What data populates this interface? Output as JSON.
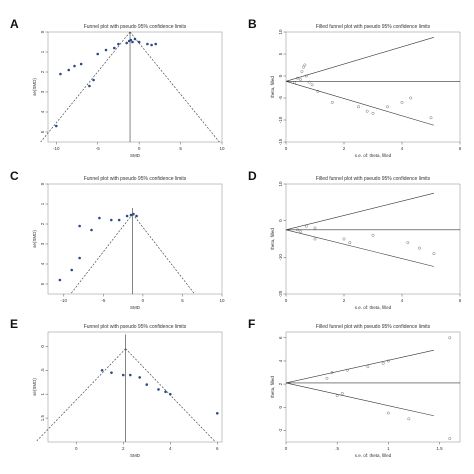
{
  "chart_data": [
    {
      "panel": "A",
      "variant": "funnel",
      "title": "Funnel plot with pseudo 95% confidence limits",
      "xlabel": "SMD",
      "ylabel": "se(SMD)",
      "xlim": [
        -11,
        10
      ],
      "ylim": [
        0,
        5.5
      ],
      "xticks": [
        "-10",
        "-5",
        "0",
        "5",
        "10"
      ],
      "xtick_values": [
        -10,
        -5,
        0,
        5,
        10
      ],
      "yticks": [
        "0",
        "1",
        "2",
        "3",
        "4",
        "5"
      ],
      "ytick_values": [
        0,
        1,
        2,
        3,
        4,
        5
      ],
      "pooled": -1.1,
      "apex_y": 0,
      "points": [
        {
          "x": -10,
          "y": 4.7
        },
        {
          "x": -9.5,
          "y": 2.1
        },
        {
          "x": -8.5,
          "y": 1.9
        },
        {
          "x": -7.8,
          "y": 1.7
        },
        {
          "x": -7,
          "y": 1.6
        },
        {
          "x": -6,
          "y": 2.7
        },
        {
          "x": -5.5,
          "y": 2.4
        },
        {
          "x": -5,
          "y": 1.1
        },
        {
          "x": -4,
          "y": 0.9
        },
        {
          "x": -3,
          "y": 0.8
        },
        {
          "x": -2.5,
          "y": 0.6
        },
        {
          "x": -1.5,
          "y": 0.55
        },
        {
          "x": -1.2,
          "y": 0.45
        },
        {
          "x": -1,
          "y": 0.4
        },
        {
          "x": -0.8,
          "y": 0.5
        },
        {
          "x": -0.5,
          "y": 0.35
        },
        {
          "x": 0,
          "y": 0.5
        },
        {
          "x": 1,
          "y": 0.6
        },
        {
          "x": 1.5,
          "y": 0.65
        },
        {
          "x": 2,
          "y": 0.6
        }
      ]
    },
    {
      "panel": "B",
      "variant": "filled",
      "title": "Filled funnel plot with pseudo 95% confidence limits",
      "xlabel": "s.e. of: theta, filled",
      "ylabel": "theta, filled",
      "xlim": [
        0,
        6
      ],
      "ylim": [
        -15,
        10
      ],
      "xticks": [
        "0",
        "2",
        "4",
        "6"
      ],
      "xtick_values": [
        0,
        2,
        4,
        6
      ],
      "yticks": [
        "10",
        "5",
        "0",
        "-5",
        "-10",
        "-15"
      ],
      "ytick_values": [
        10,
        5,
        0,
        -5,
        -10,
        -15
      ],
      "pooled": -1.2,
      "points": [
        {
          "x": 0.3,
          "y": -1.5
        },
        {
          "x": 0.4,
          "y": -0.5
        },
        {
          "x": 0.5,
          "y": -0.8
        },
        {
          "x": 0.55,
          "y": 1
        },
        {
          "x": 0.6,
          "y": 2
        },
        {
          "x": 0.65,
          "y": 2.5
        },
        {
          "x": 0.7,
          "y": 0
        },
        {
          "x": 0.8,
          "y": -1.4
        },
        {
          "x": 0.9,
          "y": -2
        },
        {
          "x": 1.1,
          "y": -3.5
        },
        {
          "x": 1.6,
          "y": -6
        },
        {
          "x": 2.5,
          "y": -7
        },
        {
          "x": 2.8,
          "y": -8
        },
        {
          "x": 3,
          "y": -8.5
        },
        {
          "x": 3.5,
          "y": -7
        },
        {
          "x": 4,
          "y": -6
        },
        {
          "x": 4.3,
          "y": -5
        },
        {
          "x": 5,
          "y": -9.5
        }
      ]
    },
    {
      "panel": "C",
      "variant": "funnel",
      "title": "Funnel plot with pseudo 95% confidence limits",
      "xlabel": "SMD",
      "ylabel": "se(SMD)",
      "xlim": [
        -12,
        10
      ],
      "ylim": [
        0,
        5.5
      ],
      "xticks": [
        "-10",
        "-5",
        "0",
        "5",
        "10"
      ],
      "xtick_values": [
        -10,
        -5,
        0,
        5,
        10
      ],
      "yticks": [
        "0",
        "1",
        "2",
        "3",
        "4",
        "5"
      ],
      "ytick_values": [
        0,
        1,
        2,
        3,
        4,
        5
      ],
      "pooled": -1.3,
      "apex_y": 1.5,
      "points": [
        {
          "x": -10.5,
          "y": 4.8
        },
        {
          "x": -9,
          "y": 4.3
        },
        {
          "x": -8,
          "y": 3.7
        },
        {
          "x": -8,
          "y": 2.1
        },
        {
          "x": -6.5,
          "y": 2.3
        },
        {
          "x": -5.5,
          "y": 1.7
        },
        {
          "x": -4,
          "y": 1.8
        },
        {
          "x": -3,
          "y": 1.8
        },
        {
          "x": -2,
          "y": 1.6
        },
        {
          "x": -1.5,
          "y": 1.55
        },
        {
          "x": -1.2,
          "y": 1.5
        },
        {
          "x": -0.8,
          "y": 1.6
        }
      ]
    },
    {
      "panel": "D",
      "variant": "filled",
      "title": "Filled funnel plot with pseudo 95% confidence limits",
      "xlabel": "s.e. of: theta, filled",
      "ylabel": "theta, filled",
      "xlim": [
        0,
        6
      ],
      "ylim": [
        -20,
        10
      ],
      "xticks": [
        "0",
        "2",
        "4",
        "6"
      ],
      "xtick_values": [
        0,
        2,
        4,
        6
      ],
      "yticks": [
        "10",
        "0",
        "-10",
        "-20"
      ],
      "ytick_values": [
        10,
        0,
        -10,
        -20
      ],
      "pooled": -2.5,
      "points": [
        {
          "x": 0.4,
          "y": -2.5
        },
        {
          "x": 0.5,
          "y": -3
        },
        {
          "x": 0.7,
          "y": -1.5
        },
        {
          "x": 1,
          "y": -2
        },
        {
          "x": 1,
          "y": -5
        },
        {
          "x": 2,
          "y": -5
        },
        {
          "x": 2.2,
          "y": -6
        },
        {
          "x": 3,
          "y": -4
        },
        {
          "x": 4.2,
          "y": -6
        },
        {
          "x": 4.6,
          "y": -7.5
        },
        {
          "x": 5.1,
          "y": -9
        }
      ]
    },
    {
      "panel": "E",
      "variant": "funnel",
      "title": "Funnel plot with pseudo 95% confidence limits",
      "xlabel": "SMD",
      "ylabel": "se(SMD)",
      "xlim": [
        -1.2,
        6.2
      ],
      "ylim": [
        -0.3,
        2
      ],
      "xticks": [
        "0",
        "2",
        "4",
        "6"
      ],
      "xtick_values": [
        0,
        2,
        4,
        6
      ],
      "yticks": [
        "0",
        ".5",
        "1",
        "1.5"
      ],
      "ytick_values": [
        0,
        0.5,
        1,
        1.5
      ],
      "pooled": 2.1,
      "apex_y": 0.05,
      "points": [
        {
          "x": 1.1,
          "y": 0.5
        },
        {
          "x": 1.5,
          "y": 0.55
        },
        {
          "x": 2,
          "y": 0.6
        },
        {
          "x": 2.3,
          "y": 0.6
        },
        {
          "x": 2.7,
          "y": 0.65
        },
        {
          "x": 3,
          "y": 0.8
        },
        {
          "x": 3.5,
          "y": 0.9
        },
        {
          "x": 3.8,
          "y": 0.95
        },
        {
          "x": 4,
          "y": 1
        },
        {
          "x": 6,
          "y": 1.4
        }
      ]
    },
    {
      "panel": "F",
      "variant": "filled",
      "title": "Filled funnel plot with pseudo 95% confidence limits",
      "xlabel": "s.e. of: theta, filled",
      "ylabel": "theta, filled",
      "xlim": [
        0,
        1.7
      ],
      "ylim": [
        -3,
        6.5
      ],
      "xticks": [
        "0",
        ".5",
        "1",
        "1.5"
      ],
      "xtick_values": [
        0,
        0.5,
        1,
        1.5
      ],
      "yticks": [
        "6",
        "4",
        "2",
        "0",
        "-2"
      ],
      "ytick_values": [
        6,
        4,
        2,
        0,
        -2
      ],
      "pooled": 2.1,
      "points": [
        {
          "x": 0.4,
          "y": 2.5
        },
        {
          "x": 0.45,
          "y": 3
        },
        {
          "x": 0.6,
          "y": 3.2
        },
        {
          "x": 0.8,
          "y": 3.5
        },
        {
          "x": 0.5,
          "y": 1
        },
        {
          "x": 0.55,
          "y": 1.2
        },
        {
          "x": 0.95,
          "y": 3.8
        },
        {
          "x": 1,
          "y": 4
        },
        {
          "x": 1,
          "y": -0.5
        },
        {
          "x": 1.2,
          "y": -1
        },
        {
          "x": 1.6,
          "y": -2.7
        },
        {
          "x": 1.6,
          "y": 6
        }
      ]
    }
  ]
}
